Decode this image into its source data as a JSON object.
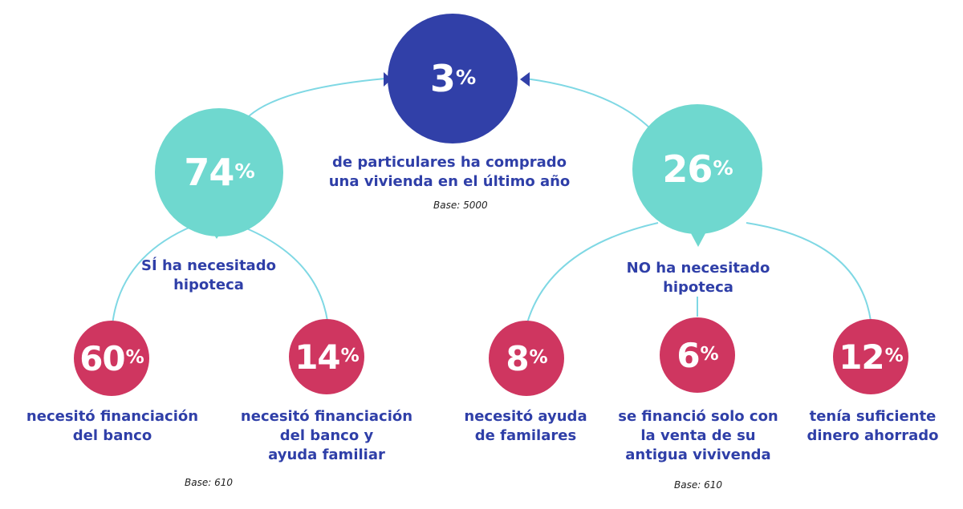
{
  "colors": {
    "top": "#3140a8",
    "level2": "#6fd8cf",
    "level3": "#cf3660",
    "line": "#7fd8e4",
    "text": "#2f3fa8"
  },
  "top": {
    "value": "3",
    "unit": "%",
    "label": "de particulares ha comprado\nuna vivienda en el último año",
    "base": "Base: 5000"
  },
  "left": {
    "value": "74",
    "unit": "%",
    "label": "SÍ ha necesitado\nhipoteca"
  },
  "right": {
    "value": "26",
    "unit": "%",
    "label": "NO ha necesitado\nhipoteca"
  },
  "leaves": [
    {
      "value": "60",
      "unit": "%",
      "label": "necesitó financiación\ndel banco"
    },
    {
      "value": "14",
      "unit": "%",
      "label": "necesitó financiación\ndel banco y\nayuda familiar"
    },
    {
      "value": "8",
      "unit": "%",
      "label": "necesitó ayuda\nde familares"
    },
    {
      "value": "6",
      "unit": "%",
      "label": "se financió solo con\nla venta de su\nantigua vivivenda"
    },
    {
      "value": "12",
      "unit": "%",
      "label": "tenía suficiente\ndinero ahorrado"
    }
  ],
  "bases": {
    "left": "Base: 610",
    "right": "Base: 610"
  }
}
